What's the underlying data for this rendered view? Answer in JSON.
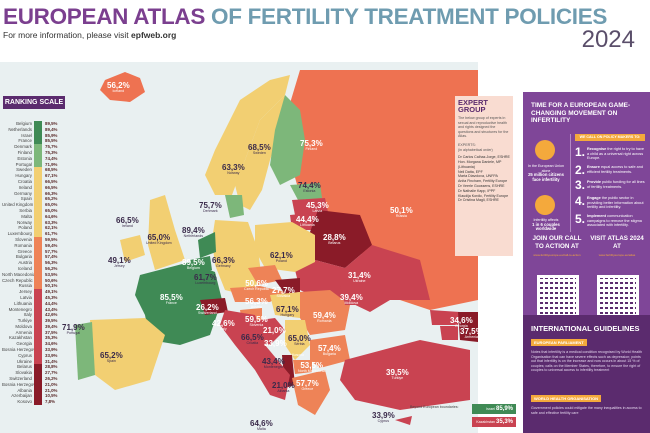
{
  "header": {
    "title_part1": "EUROPEAN ATLAS",
    "title_part2": "OF FERTILITY TREATMENT POLICIES",
    "subtitle_prefix": "For more information, please visit ",
    "subtitle_link": "epfweb.org",
    "year": "2024"
  },
  "ranking": {
    "title": "RANKING SCALE",
    "colors": {
      "dark_green": "#3f8a55",
      "light_green": "#7db77a",
      "yellow": "#f2cf72",
      "orange": "#ee8357",
      "red": "#c94351",
      "dark_red": "#8a1b28"
    },
    "items": [
      {
        "name": "Belgium",
        "value": "89,5%",
        "tier": "dark_green"
      },
      {
        "name": "Netherlands",
        "value": "89,4%",
        "tier": "dark_green"
      },
      {
        "name": "Israel",
        "value": "85,9%",
        "tier": "dark_green"
      },
      {
        "name": "France",
        "value": "85,5%",
        "tier": "dark_green"
      },
      {
        "name": "Denmark",
        "value": "75,7%",
        "tier": "light_green"
      },
      {
        "name": "Finland",
        "value": "75,3%",
        "tier": "light_green"
      },
      {
        "name": "Estonia",
        "value": "74,4%",
        "tier": "light_green"
      },
      {
        "name": "Portugal",
        "value": "71,9%",
        "tier": "light_green"
      },
      {
        "name": "Sweden",
        "value": "68,5%",
        "tier": "yellow"
      },
      {
        "name": "Hungary",
        "value": "67,1%",
        "tier": "yellow"
      },
      {
        "name": "Croatia",
        "value": "66,5%",
        "tier": "yellow"
      },
      {
        "name": "Ireland",
        "value": "66,5%",
        "tier": "yellow"
      },
      {
        "name": "Germany",
        "value": "66,3%",
        "tier": "yellow"
      },
      {
        "name": "Spain",
        "value": "65,2%",
        "tier": "yellow"
      },
      {
        "name": "United Kingdom",
        "value": "65,0%",
        "tier": "yellow"
      },
      {
        "name": "Serbia",
        "value": "65,0%",
        "tier": "yellow"
      },
      {
        "name": "Malta",
        "value": "64,6%",
        "tier": "yellow"
      },
      {
        "name": "Norway",
        "value": "63,3%",
        "tier": "yellow"
      },
      {
        "name": "Poland",
        "value": "62,1%",
        "tier": "yellow"
      },
      {
        "name": "Luxembourg",
        "value": "61,7%",
        "tier": "yellow"
      },
      {
        "name": "Slovenia",
        "value": "59,5%",
        "tier": "orange"
      },
      {
        "name": "Romania",
        "value": "59,4%",
        "tier": "orange"
      },
      {
        "name": "Greece",
        "value": "57,7%",
        "tier": "orange"
      },
      {
        "name": "Bulgaria",
        "value": "57,4%",
        "tier": "orange"
      },
      {
        "name": "Austria",
        "value": "56,3%",
        "tier": "orange"
      },
      {
        "name": "Iceland",
        "value": "56,2%",
        "tier": "orange"
      },
      {
        "name": "North Macedonia",
        "value": "53,5%",
        "tier": "orange"
      },
      {
        "name": "Czech Republic",
        "value": "50,6%",
        "tier": "orange"
      },
      {
        "name": "Russia",
        "value": "50,1%",
        "tier": "orange"
      },
      {
        "name": "Jersey",
        "value": "49,1%",
        "tier": "red"
      },
      {
        "name": "Latvia",
        "value": "45,3%",
        "tier": "red"
      },
      {
        "name": "Lithuania",
        "value": "44,4%",
        "tier": "red"
      },
      {
        "name": "Montenegro",
        "value": "43,4%",
        "tier": "red"
      },
      {
        "name": "Italy",
        "value": "42,6%",
        "tier": "red"
      },
      {
        "name": "Turkiye",
        "value": "39,5%",
        "tier": "red"
      },
      {
        "name": "Moldova",
        "value": "39,4%",
        "tier": "red"
      },
      {
        "name": "Armenia",
        "value": "37,5%",
        "tier": "red"
      },
      {
        "name": "Kazakhstan",
        "value": "35,3%",
        "tier": "red"
      },
      {
        "name": "Georgia",
        "value": "34,6%",
        "tier": "red"
      },
      {
        "name": "Bosnia Herzegovina - Fed.",
        "value": "33,9%",
        "tier": "red"
      },
      {
        "name": "Cyprus",
        "value": "33,9%",
        "tier": "red"
      },
      {
        "name": "Ukraine",
        "value": "31,4%",
        "tier": "red"
      },
      {
        "name": "Belarus",
        "value": "28,8%",
        "tier": "dark_red"
      },
      {
        "name": "Slovakia",
        "value": "27,7%",
        "tier": "dark_red"
      },
      {
        "name": "Switzerland",
        "value": "26,2%",
        "tier": "dark_red"
      },
      {
        "name": "Bosnia Herzegovina - Rep.",
        "value": "21,0%",
        "tier": "dark_red"
      },
      {
        "name": "Albania",
        "value": "21,0%",
        "tier": "dark_red"
      },
      {
        "name": "Azerbaijan",
        "value": "10,5%",
        "tier": "dark_red"
      },
      {
        "name": "Kosovo",
        "value": "7,8%",
        "tier": "dark_red"
      }
    ]
  },
  "map_labels": {
    "iceland": {
      "pct": "56,2%",
      "name": "Iceland"
    },
    "norway": {
      "pct": "63,3%",
      "name": "Norway"
    },
    "sweden": {
      "pct": "68,5%",
      "name": "Sweden"
    },
    "finland": {
      "pct": "75,3%",
      "name": "Finland"
    },
    "estonia": {
      "pct": "74,4%",
      "name": "Estonia"
    },
    "latvia": {
      "pct": "45,3%",
      "name": "Latvia"
    },
    "lithuania": {
      "pct": "44,4%",
      "name": "Lithuania"
    },
    "russia": {
      "pct": "50,1%",
      "name": "Russia"
    },
    "belarus": {
      "pct": "28,8%",
      "name": "Belarus"
    },
    "denmark": {
      "pct": "75,7%",
      "name": "Denmark"
    },
    "ireland": {
      "pct": "66,5%",
      "name": "Ireland"
    },
    "uk": {
      "pct": "65,0%",
      "name": "United Kingdom"
    },
    "netherlands": {
      "pct": "89,4%",
      "name": "Netherlands"
    },
    "belgium": {
      "pct": "89,5%",
      "name": "Belgium"
    },
    "jersey": {
      "pct": "49,1%",
      "name": "Jersey"
    },
    "luxembourg": {
      "pct": "61,7%",
      "name": "Luxembourg"
    },
    "germany": {
      "pct": "66,3%",
      "name": "Germany"
    },
    "poland": {
      "pct": "62,1%",
      "name": "Poland"
    },
    "czech": {
      "pct": "50,6%",
      "name": "Czech Republic"
    },
    "slovakia": {
      "pct": "27,7%",
      "name": "Slovakia"
    },
    "austria": {
      "pct": "56,3%",
      "name": "Austria"
    },
    "switzerland": {
      "pct": "26,2%",
      "name": "Switzerland"
    },
    "france": {
      "pct": "85,5%",
      "name": "France"
    },
    "hungary": {
      "pct": "67,1%",
      "name": "Hungary"
    },
    "slovenia": {
      "pct": "59,5%",
      "name": "Slovenia"
    },
    "croatia": {
      "pct": "66,5%",
      "name": "Croatia"
    },
    "bih_rep": {
      "pct": "21,0%",
      "name": "Bosnia Herzegovina - Rep."
    },
    "bih_fed": {
      "pct": "33,9%",
      "name": "Bosnia Herzegovina - Fed."
    },
    "serbia": {
      "pct": "65,0%",
      "name": "Serbia"
    },
    "kosovo": {
      "pct": "7,8%",
      "name": "Kosovo"
    },
    "montenegro": {
      "pct": "43,4%",
      "name": "Montenegro"
    },
    "albania": {
      "pct": "21,0%",
      "name": "Albania"
    },
    "north_macedonia": {
      "pct": "53,5%",
      "name": "North Macedonia"
    },
    "greece": {
      "pct": "57,7%",
      "name": "Greece"
    },
    "bulgaria": {
      "pct": "57,4%",
      "name": "Bulgaria"
    },
    "romania": {
      "pct": "59,4%",
      "name": "Romania"
    },
    "moldova": {
      "pct": "39,4%",
      "name": "Moldova"
    },
    "ukraine": {
      "pct": "31,4%",
      "name": "Ukraine"
    },
    "italy": {
      "pct": "42,6%",
      "name": "Italy"
    },
    "malta": {
      "pct": "64,6%",
      "name": "Malta"
    },
    "portugal": {
      "pct": "71,9%",
      "name": "Portugal"
    },
    "spain": {
      "pct": "65,2%",
      "name": "Spain"
    },
    "turkiye": {
      "pct": "39,5%",
      "name": "Turkiye"
    },
    "cyprus": {
      "pct": "33,9%",
      "name": "Cyprus"
    },
    "georgia": {
      "pct": "34,6%",
      "name": "Georgia"
    },
    "armenia": {
      "pct": "37,5%",
      "name": "Armenia"
    },
    "azerbaijan": {
      "pct": "10,5%",
      "name": "Azerbaijan"
    }
  },
  "beyond": {
    "label": "Beyond European boundaries:",
    "israel": {
      "name": "Israel",
      "pct": "85,9%"
    },
    "kazakhstan": {
      "name": "Kazakhstan",
      "pct": "35,3%"
    }
  },
  "expert_group": {
    "title_line1": "EXPERT",
    "title_line2": "GROUP",
    "description": "The below group of experts in sexual and reproductive health and rights designed the questions and structures for the Atlas.",
    "experts_heading": "EXPERTS:",
    "experts_order": "(in alphabetical order)",
    "members": [
      "Dr Carlos Calhaz-Jorge, ESHRE",
      "Hon. Morgana Daniele, MP (Lithuania)",
      "Neil Datta, EPF",
      "Marta Diavolova, UNFPA",
      "Anita Fincham, Fertility Europe",
      "Dr Veerle Goossens, ESHRE",
      "Dr Nathalie Kapp, IPPF",
      "Klaudija Kordic, Fertility Europe",
      "Dr Cristina Magli, ESHRE"
    ]
  },
  "panel": {
    "heading": "TIME FOR A EUROPEAN GAME-CHANGING MOVEMENT ON INFERTILITY",
    "call_label": "WE CALL ON POLICY MAKERS TO:",
    "stat1": {
      "prefix": "In the European Union alone",
      "bold": "25 million citizens face infertility"
    },
    "stat2": {
      "prefix": "Infertility affects",
      "bold": "1 in 6 couples worldwide"
    },
    "policies": [
      {
        "num": "1.",
        "bold": "Recognise",
        "text": " the right to try to have a child as a universal right across Europe."
      },
      {
        "num": "2.",
        "bold": "Ensure",
        "text": " equal access to safe and efficient fertility treatments."
      },
      {
        "num": "3.",
        "bold": "Provide",
        "text": " public funding for all lines of fertility treatments."
      },
      {
        "num": "4.",
        "bold": "Engage",
        "text": " the public sector in providing better information about fertility and infertility."
      },
      {
        "num": "5.",
        "bold": "Implement",
        "text": " communication campaigns to remove the stigma associated with infertility."
      }
    ],
    "cta1": {
      "title": "JOIN OUR CALL TO ACTION AT",
      "sub": "www.fertilityeurope.eu/call-to-action"
    },
    "cta2": {
      "title": "VISIT ATLAS 2024 AT",
      "sub": "www.fertilityeurope.eu/atlas"
    }
  },
  "guidelines": {
    "title": "INTERNATIONAL GUIDELINES",
    "ep_tag": "EUROPEAN PARLIAMENT",
    "ep_text": "Notes that infertility is a medical condition recognised by World Health Organisation that can have severe effects such as depression; points out that infertility is on the increase and now occurs in about 15 % of couples; calls on the Member States, therefore, to ensure the right of couples to universal access to infertility treatment",
    "who_tag": "WORLD HEALTH ORGANISATION",
    "who_text": "Government policies could mitigate the many inequalities in access to safe and effective fertility care"
  }
}
